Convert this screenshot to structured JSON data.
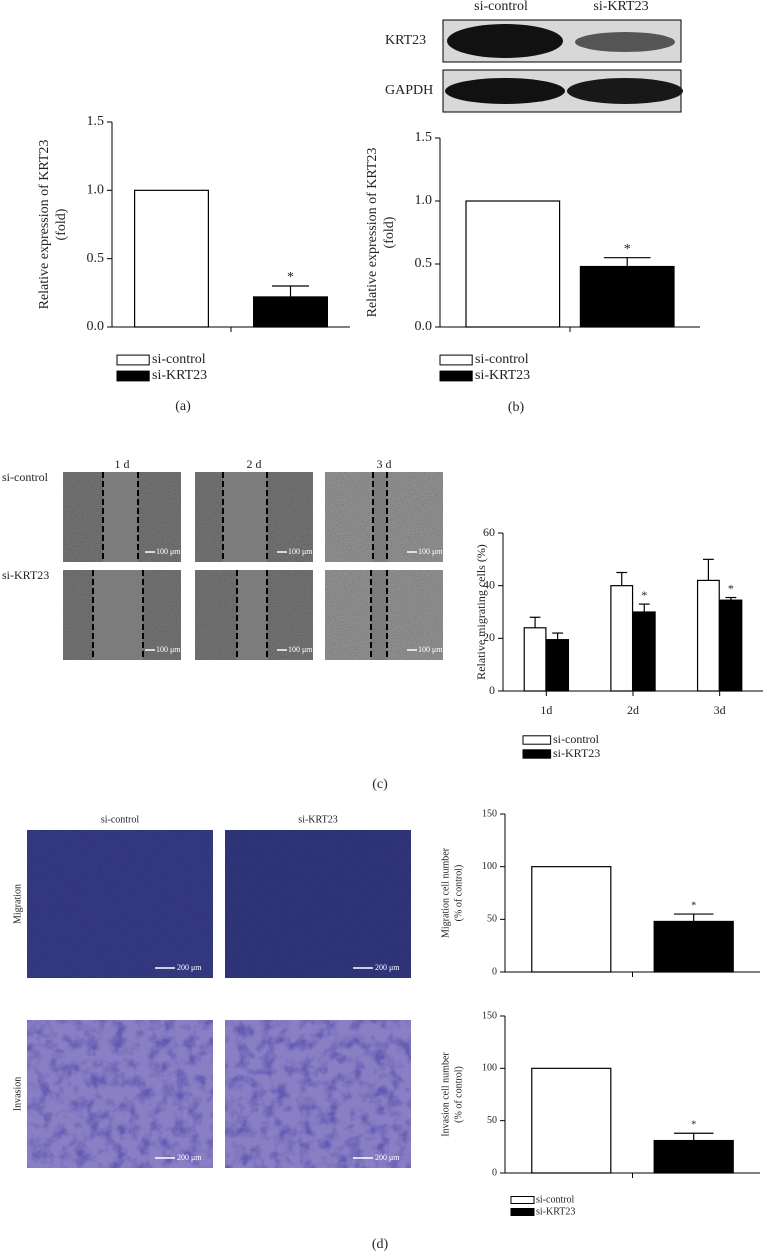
{
  "figure": {
    "panel_labels": [
      "(a)",
      "(b)",
      "(c)",
      "(d)"
    ],
    "blot": {
      "columns": [
        "si-control",
        "si-KRT23"
      ],
      "rows": [
        "KRT23",
        "GAPDH"
      ]
    },
    "wound": {
      "columns": [
        "1 d",
        "2 d",
        "3 d"
      ],
      "rows": [
        "si-control",
        "si-KRT23"
      ],
      "scale": "100 μm"
    },
    "transwell": {
      "columns": [
        "si-control",
        "si-KRT23"
      ],
      "rows": [
        "Migration",
        "Invasion"
      ],
      "scale": "200 μm"
    }
  },
  "chart_data": [
    {
      "type": "bar",
      "ylabel": [
        "Relative expression of KRT23",
        "(fold)"
      ],
      "categories": [
        null
      ],
      "series": [
        {
          "name": "si-control",
          "color": "#ffffff",
          "values": [
            1.0
          ]
        },
        {
          "name": "si-KRT23",
          "color": "#000000",
          "values": [
            0.22
          ],
          "errors": [
            0.08
          ],
          "annotations": [
            "*"
          ]
        }
      ],
      "ylim": [
        0,
        1.5
      ],
      "yticks": [
        {
          "value": 0,
          "label": "0.0"
        },
        {
          "value": 0.5,
          "label": "0.5"
        },
        {
          "value": 1,
          "label": "1.0"
        },
        {
          "value": 1.5,
          "label": "1.5"
        }
      ],
      "legend": true
    },
    {
      "type": "bar",
      "ylabel": [
        "Relative expression of KRT23",
        "(fold)"
      ],
      "categories": [
        null
      ],
      "series": [
        {
          "name": "si-control",
          "color": "#ffffff",
          "values": [
            1.0
          ]
        },
        {
          "name": "si-KRT23",
          "color": "#000000",
          "values": [
            0.48
          ],
          "errors": [
            0.07
          ],
          "annotations": [
            "*"
          ]
        }
      ],
      "ylim": [
        0,
        1.5
      ],
      "yticks": [
        {
          "value": 0,
          "label": "0.0"
        },
        {
          "value": 0.5,
          "label": "0.5"
        },
        {
          "value": 1,
          "label": "1.0"
        },
        {
          "value": 1.5,
          "label": "1.5"
        }
      ],
      "legend": true
    },
    {
      "type": "bar",
      "ylabel": [
        "Relative migrating cells (%)"
      ],
      "categories": [
        "1d",
        "2d",
        "3d"
      ],
      "series": [
        {
          "name": "si-control",
          "color": "#ffffff",
          "values": [
            24,
            40,
            42
          ],
          "errors": [
            4,
            5,
            8
          ]
        },
        {
          "name": "si-KRT23",
          "color": "#000000",
          "values": [
            19.5,
            30,
            34.5
          ],
          "errors": [
            2.5,
            3,
            1
          ],
          "annotations": [
            null,
            "*",
            "*"
          ]
        }
      ],
      "ylim": [
        0,
        60
      ],
      "yticks": [
        0,
        20,
        40,
        60
      ],
      "legend": true
    },
    {
      "type": "bar",
      "ylabel": [
        "Migration cell number",
        "(% of control)"
      ],
      "categories": [
        null
      ],
      "series": [
        {
          "color": "#ffffff",
          "values": [
            100
          ]
        },
        {
          "color": "#000000",
          "values": [
            48
          ],
          "errors": [
            7
          ],
          "annotations": [
            "*"
          ]
        }
      ],
      "ylim": [
        0,
        150
      ],
      "yticks": [
        0,
        50,
        100,
        150
      ],
      "legend": false
    },
    {
      "type": "bar",
      "ylabel": [
        "Invasion cell number",
        "(% of control)"
      ],
      "categories": [
        null
      ],
      "series": [
        {
          "name": "si-control",
          "color": "#ffffff",
          "values": [
            100
          ]
        },
        {
          "name": "si-KRT23",
          "color": "#000000",
          "values": [
            31
          ],
          "errors": [
            7
          ],
          "annotations": [
            "*"
          ]
        }
      ],
      "ylim": [
        0,
        150
      ],
      "yticks": [
        0,
        50,
        100,
        150
      ],
      "legend": true
    }
  ]
}
